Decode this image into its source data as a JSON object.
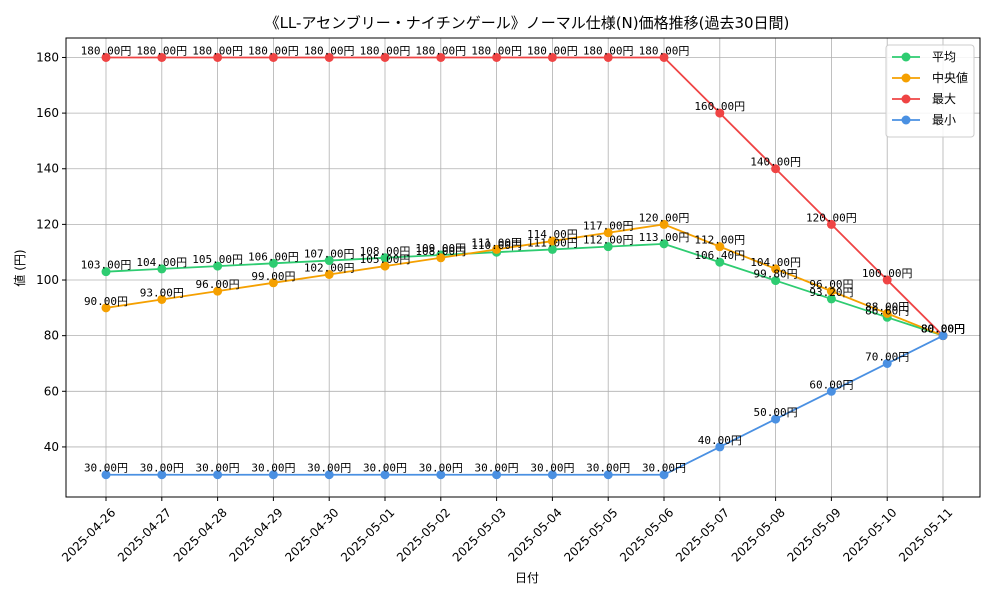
{
  "chart_data": {
    "type": "line",
    "title": "《LL-アセンブリー・ナイチンゲール》ノーマル仕様(N)価格推移(過去30日間)",
    "xlabel": "日付",
    "ylabel": "値 (円)",
    "ylim": [
      22,
      187
    ],
    "yticks": [
      40,
      60,
      80,
      100,
      120,
      140,
      160,
      180
    ],
    "grid": true,
    "legend_position": "top-right",
    "categories": [
      "2025-04-26",
      "2025-04-27",
      "2025-04-28",
      "2025-04-29",
      "2025-04-30",
      "2025-05-01",
      "2025-05-02",
      "2025-05-03",
      "2025-05-04",
      "2025-05-05",
      "2025-05-06",
      "2025-05-07",
      "2025-05-08",
      "2025-05-09",
      "2025-05-10",
      "2025-05-11"
    ],
    "series": [
      {
        "name": "平均",
        "color": "#2ecc71",
        "values": [
          103,
          104,
          105,
          106,
          107,
          108,
          109,
          110,
          111,
          112,
          113,
          106.4,
          99.8,
          93.2,
          86.6,
          80
        ],
        "labels": [
          "103.00円",
          "104.00円",
          "105.00円",
          "106.00円",
          "107.00円",
          "108.00円",
          "109.00円",
          "110.00円",
          "111.00円",
          "112.00円",
          "113.00円",
          "106.40円",
          "99.80円",
          "93.20円",
          "86.60円",
          "80.00円"
        ]
      },
      {
        "name": "中央値",
        "color": "#f5a000",
        "values": [
          90,
          93,
          96,
          99,
          102,
          105,
          108,
          111,
          114,
          117,
          120,
          112,
          104,
          96,
          88,
          80
        ],
        "labels": [
          "90.00円",
          "93.00円",
          "96.00円",
          "99.00円",
          "102.00円",
          "105.00円",
          "108.00円",
          "111.00円",
          "114.00円",
          "117.00円",
          "120.00円",
          "112.00円",
          "104.00円",
          "96.00円",
          "88.00円",
          "80.00円"
        ]
      },
      {
        "name": "最大",
        "color": "#ef4444",
        "values": [
          180,
          180,
          180,
          180,
          180,
          180,
          180,
          180,
          180,
          180,
          180,
          160,
          140,
          120,
          100,
          80
        ],
        "labels": [
          "180.00円",
          "180.00円",
          "180.00円",
          "180.00円",
          "180.00円",
          "180.00円",
          "180.00円",
          "180.00円",
          "180.00円",
          "180.00円",
          "180.00円",
          "160.00円",
          "140.00円",
          "120.00円",
          "100.00円",
          "80.00円"
        ]
      },
      {
        "name": "最小",
        "color": "#4a90e2",
        "values": [
          30,
          30,
          30,
          30,
          30,
          30,
          30,
          30,
          30,
          30,
          30,
          40,
          50,
          60,
          70,
          80
        ],
        "labels": [
          "30.00円",
          "30.00円",
          "30.00円",
          "30.00円",
          "30.00円",
          "30.00円",
          "30.00円",
          "30.00円",
          "30.00円",
          "30.00円",
          "30.00円",
          "40.00円",
          "50.00円",
          "60.00円",
          "70.00円",
          "80.00円"
        ]
      }
    ]
  }
}
